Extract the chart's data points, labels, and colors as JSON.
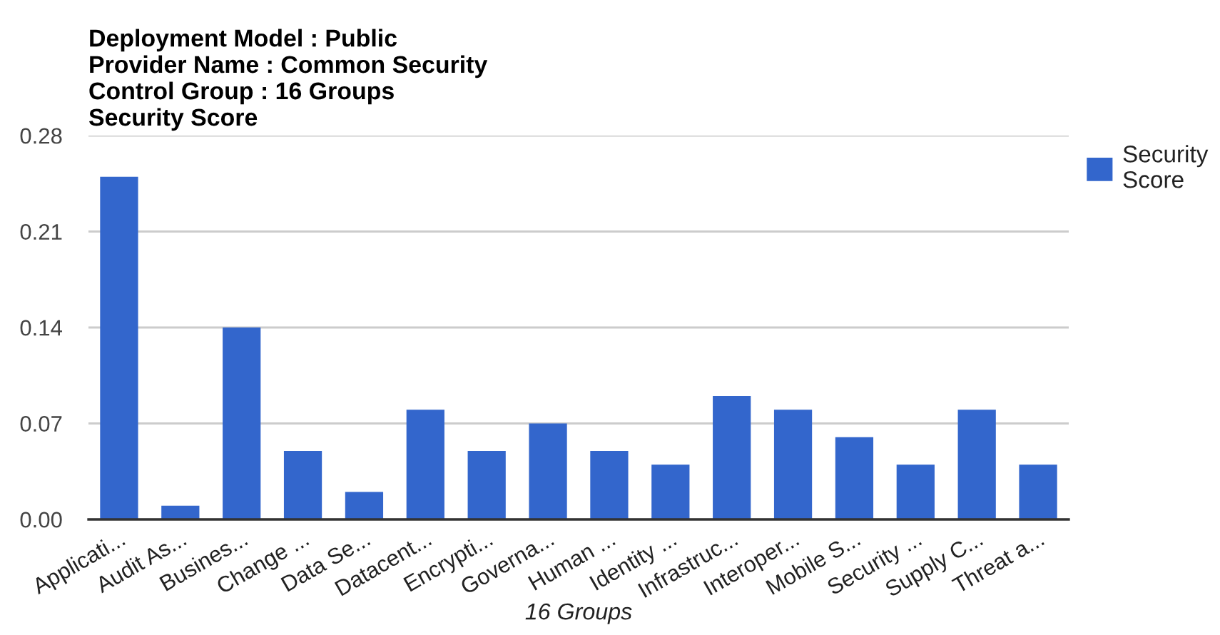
{
  "chart_data": {
    "type": "bar",
    "title": "Deployment Model : Public\nProvider Name : Common Security\nControl Group : 16 Groups\nSecurity Score",
    "xlabel": "16 Groups",
    "categories": [
      "Applicati...",
      "Audit As...",
      "Busines...",
      "Change ...",
      "Data Se...",
      "Datacent...",
      "Encrypti...",
      "Governa...",
      "Human ...",
      "Identity ...",
      "Infrastruc...",
      "Interoper...",
      "Mobile S...",
      "Security ...",
      "Supply C...",
      "Threat a..."
    ],
    "series": [
      {
        "name": "Security Score",
        "color": "#3366cc",
        "values": [
          0.25,
          0.01,
          0.14,
          0.05,
          0.02,
          0.08,
          0.05,
          0.07,
          0.05,
          0.04,
          0.09,
          0.08,
          0.06,
          0.04,
          0.08,
          0.04
        ]
      }
    ],
    "ylim": [
      0,
      0.28
    ],
    "yticks": [
      {
        "value": 0,
        "label": "0.00"
      },
      0.07,
      0.14,
      0.21,
      0.28
    ],
    "grid": "y",
    "legend": "top right"
  }
}
